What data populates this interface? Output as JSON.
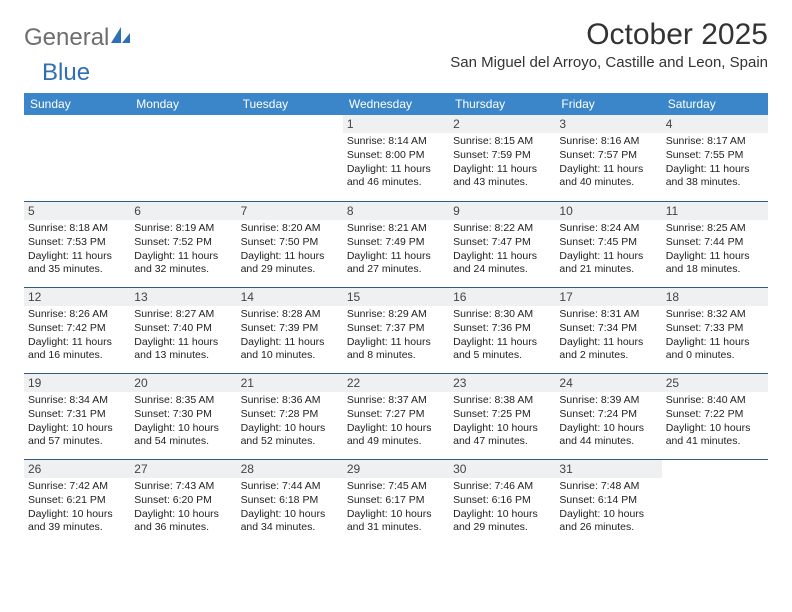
{
  "logo": {
    "text_general": "General",
    "text_blue": "Blue"
  },
  "header": {
    "month_title": "October 2025",
    "location": "San Miguel del Arroyo, Castille and Leon, Spain"
  },
  "colors": {
    "header_bg": "#3a86c8",
    "header_text": "#ffffff",
    "daynum_bg": "#eef0f2",
    "row_border": "#2f5b84",
    "logo_gray": "#6e6e6e",
    "logo_blue": "#2f6fb3"
  },
  "weekdays": [
    "Sunday",
    "Monday",
    "Tuesday",
    "Wednesday",
    "Thursday",
    "Friday",
    "Saturday"
  ],
  "weeks": [
    [
      null,
      null,
      null,
      {
        "n": "1",
        "sr": "8:14 AM",
        "ss": "8:00 PM",
        "dl": "11 hours and 46 minutes."
      },
      {
        "n": "2",
        "sr": "8:15 AM",
        "ss": "7:59 PM",
        "dl": "11 hours and 43 minutes."
      },
      {
        "n": "3",
        "sr": "8:16 AM",
        "ss": "7:57 PM",
        "dl": "11 hours and 40 minutes."
      },
      {
        "n": "4",
        "sr": "8:17 AM",
        "ss": "7:55 PM",
        "dl": "11 hours and 38 minutes."
      }
    ],
    [
      {
        "n": "5",
        "sr": "8:18 AM",
        "ss": "7:53 PM",
        "dl": "11 hours and 35 minutes."
      },
      {
        "n": "6",
        "sr": "8:19 AM",
        "ss": "7:52 PM",
        "dl": "11 hours and 32 minutes."
      },
      {
        "n": "7",
        "sr": "8:20 AM",
        "ss": "7:50 PM",
        "dl": "11 hours and 29 minutes."
      },
      {
        "n": "8",
        "sr": "8:21 AM",
        "ss": "7:49 PM",
        "dl": "11 hours and 27 minutes."
      },
      {
        "n": "9",
        "sr": "8:22 AM",
        "ss": "7:47 PM",
        "dl": "11 hours and 24 minutes."
      },
      {
        "n": "10",
        "sr": "8:24 AM",
        "ss": "7:45 PM",
        "dl": "11 hours and 21 minutes."
      },
      {
        "n": "11",
        "sr": "8:25 AM",
        "ss": "7:44 PM",
        "dl": "11 hours and 18 minutes."
      }
    ],
    [
      {
        "n": "12",
        "sr": "8:26 AM",
        "ss": "7:42 PM",
        "dl": "11 hours and 16 minutes."
      },
      {
        "n": "13",
        "sr": "8:27 AM",
        "ss": "7:40 PM",
        "dl": "11 hours and 13 minutes."
      },
      {
        "n": "14",
        "sr": "8:28 AM",
        "ss": "7:39 PM",
        "dl": "11 hours and 10 minutes."
      },
      {
        "n": "15",
        "sr": "8:29 AM",
        "ss": "7:37 PM",
        "dl": "11 hours and 8 minutes."
      },
      {
        "n": "16",
        "sr": "8:30 AM",
        "ss": "7:36 PM",
        "dl": "11 hours and 5 minutes."
      },
      {
        "n": "17",
        "sr": "8:31 AM",
        "ss": "7:34 PM",
        "dl": "11 hours and 2 minutes."
      },
      {
        "n": "18",
        "sr": "8:32 AM",
        "ss": "7:33 PM",
        "dl": "11 hours and 0 minutes."
      }
    ],
    [
      {
        "n": "19",
        "sr": "8:34 AM",
        "ss": "7:31 PM",
        "dl": "10 hours and 57 minutes."
      },
      {
        "n": "20",
        "sr": "8:35 AM",
        "ss": "7:30 PM",
        "dl": "10 hours and 54 minutes."
      },
      {
        "n": "21",
        "sr": "8:36 AM",
        "ss": "7:28 PM",
        "dl": "10 hours and 52 minutes."
      },
      {
        "n": "22",
        "sr": "8:37 AM",
        "ss": "7:27 PM",
        "dl": "10 hours and 49 minutes."
      },
      {
        "n": "23",
        "sr": "8:38 AM",
        "ss": "7:25 PM",
        "dl": "10 hours and 47 minutes."
      },
      {
        "n": "24",
        "sr": "8:39 AM",
        "ss": "7:24 PM",
        "dl": "10 hours and 44 minutes."
      },
      {
        "n": "25",
        "sr": "8:40 AM",
        "ss": "7:22 PM",
        "dl": "10 hours and 41 minutes."
      }
    ],
    [
      {
        "n": "26",
        "sr": "7:42 AM",
        "ss": "6:21 PM",
        "dl": "10 hours and 39 minutes."
      },
      {
        "n": "27",
        "sr": "7:43 AM",
        "ss": "6:20 PM",
        "dl": "10 hours and 36 minutes."
      },
      {
        "n": "28",
        "sr": "7:44 AM",
        "ss": "6:18 PM",
        "dl": "10 hours and 34 minutes."
      },
      {
        "n": "29",
        "sr": "7:45 AM",
        "ss": "6:17 PM",
        "dl": "10 hours and 31 minutes."
      },
      {
        "n": "30",
        "sr": "7:46 AM",
        "ss": "6:16 PM",
        "dl": "10 hours and 29 minutes."
      },
      {
        "n": "31",
        "sr": "7:48 AM",
        "ss": "6:14 PM",
        "dl": "10 hours and 26 minutes."
      },
      null
    ]
  ],
  "labels": {
    "sunrise": "Sunrise:",
    "sunset": "Sunset:",
    "daylight": "Daylight:"
  }
}
